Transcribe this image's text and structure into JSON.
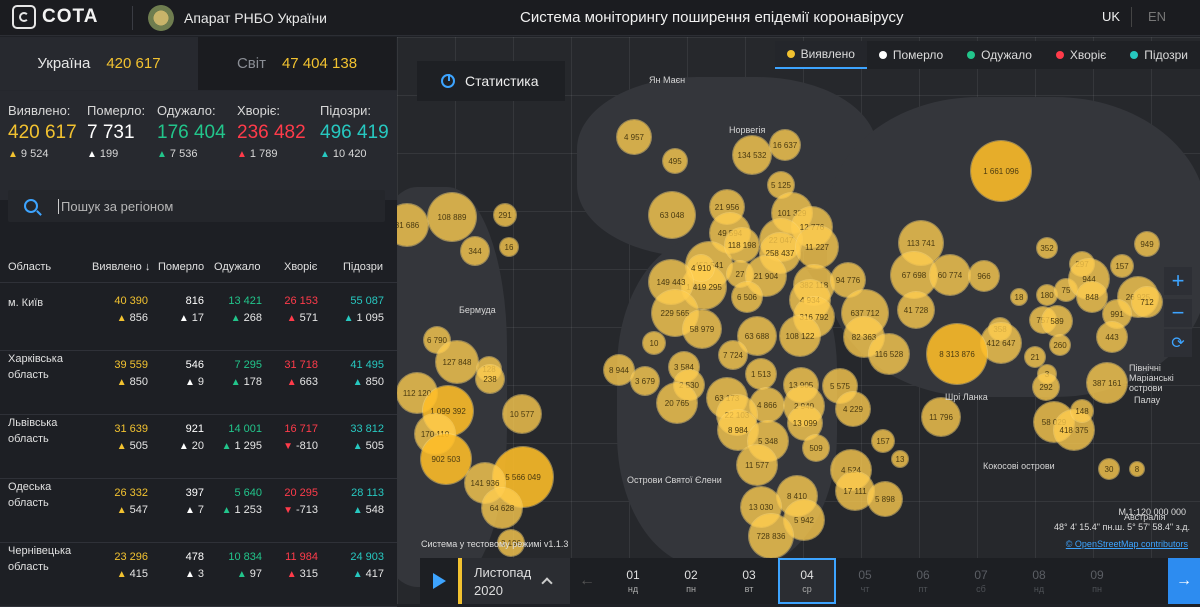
{
  "header": {
    "logo_text": "COTA",
    "org_name": "Апарат РНБО України",
    "title": "Система моніторингу поширення епідемії коронавірусу",
    "lang_uk": "UK",
    "lang_en": "EN"
  },
  "tabs": {
    "ukraine_label": "Україна",
    "ukraine_value": "420 617",
    "world_label": "Світ",
    "world_value": "47 404 138"
  },
  "summary": {
    "detected": {
      "label": "Виявлено:",
      "value": "420 617",
      "delta": "9 524"
    },
    "died": {
      "label": "Померло:",
      "value": "7 731",
      "delta": "199"
    },
    "recovered": {
      "label": "Одужало:",
      "value": "176 404",
      "delta": "7 536"
    },
    "sick": {
      "label": "Хворіє:",
      "value": "236 482",
      "delta": "1 789"
    },
    "suspected": {
      "label": "Підозри:",
      "value": "496 419",
      "delta": "10 420"
    }
  },
  "search": {
    "placeholder": "Пошук за регіоном"
  },
  "table": {
    "headers": {
      "region": "Область",
      "detected": "Виявлено",
      "sort_icon": "↓",
      "died": "Померло",
      "recovered": "Одужало",
      "sick": "Хворіє",
      "suspected": "Підозри"
    },
    "rows": [
      {
        "region": "м. Київ",
        "detected": "40 390",
        "detected_d": "856",
        "died": "816",
        "died_d": "17",
        "recovered": "13 421",
        "recovered_d": "268",
        "sick": "26 153",
        "sick_d": "571",
        "suspected": "55 087",
        "suspected_d": "1 095"
      },
      {
        "region": "Харківська область",
        "detected": "39 559",
        "detected_d": "850",
        "died": "546",
        "died_d": "9",
        "recovered": "7 295",
        "recovered_d": "178",
        "sick": "31 718",
        "sick_d": "663",
        "suspected": "41 495",
        "suspected_d": "850"
      },
      {
        "region": "Львівська область",
        "detected": "31 639",
        "detected_d": "505",
        "died": "921",
        "died_d": "20",
        "recovered": "14 001",
        "recovered_d": "1 295",
        "sick": "16 717",
        "sick_d": "-810",
        "suspected": "33 812",
        "suspected_d": "505"
      },
      {
        "region": "Одеська область",
        "detected": "26 332",
        "detected_d": "547",
        "died": "397",
        "died_d": "7",
        "recovered": "5 640",
        "recovered_d": "1 253",
        "sick": "20 295",
        "sick_d": "-713",
        "suspected": "28 113",
        "suspected_d": "548"
      },
      {
        "region": "Чернівецька область",
        "detected": "23 296",
        "detected_d": "415",
        "died": "478",
        "died_d": "3",
        "recovered": "10 834",
        "recovered_d": "97",
        "sick": "11 984",
        "sick_d": "315",
        "suspected": "24 903",
        "suspected_d": "417"
      }
    ]
  },
  "map": {
    "legend": [
      "Виявлено",
      "Померло",
      "Одужало",
      "Хворіє",
      "Підозри"
    ],
    "legend_colors": [
      "#f2c230",
      "#ffffff",
      "#22c58b",
      "#ff3b4a",
      "#27c8c0"
    ],
    "stats_button": "Статистика",
    "labels": [
      "Ян Маєн",
      "Норвегія",
      "Бермуда",
      "Острови Святої Єлени",
      "Шрі Ланка",
      "Кокосові острови",
      "Палау",
      "Північні Маріанські острови",
      "Австралія"
    ],
    "bubbles": [
      "4 957",
      "495",
      "134 532",
      "16 637",
      "21 956",
      "5 125",
      "1 661 096",
      "63 048",
      "49 594",
      "101 329",
      "291",
      "108 889",
      "81 686",
      "452 541",
      "12 776",
      "344",
      "16",
      "1 419 295",
      "118 198",
      "22 047",
      "258 437",
      "11 227",
      "113 741",
      "352",
      "949",
      "297",
      "157",
      "4 910",
      "27",
      "21 904",
      "149 443",
      "6 506",
      "382 118",
      "94 776",
      "67 698",
      "60 774",
      "966",
      "180",
      "75",
      "944",
      "848",
      "26 925",
      "18",
      "4 934",
      "229 565",
      "316 792",
      "637 712",
      "41 728",
      "757",
      "589",
      "991",
      "712",
      "58 979",
      "63 688",
      "108 122",
      "82 363",
      "358",
      "412 647",
      "260",
      "443",
      "6 790",
      "10",
      "116 528",
      "8 313 876",
      "21",
      "3",
      "127 848",
      "128",
      "7 724",
      "8 944",
      "3 584",
      "1 513",
      "3 679",
      "2 530",
      "13 905",
      "5 575",
      "238",
      "112 120",
      "20 765",
      "63 173",
      "4 866",
      "2 940",
      "4 229",
      "292",
      "387 161",
      "1 099 392",
      "22 103",
      "8 984",
      "13 099",
      "11 796",
      "10 577",
      "170 110",
      "58 029",
      "418 375",
      "148",
      "902 503",
      "5 348",
      "509",
      "157",
      "13",
      "11 577",
      "4 524",
      "5 566 049",
      "141 936",
      "17 111",
      "8 410",
      "5 898",
      "64 628",
      "13 030",
      "5 942",
      "728 836",
      "3 196",
      "30",
      "8"
    ],
    "scale": "М 1:120 000 000",
    "coords": "48° 4' 15.4\" пн.ш. 5° 57' 58.4\" з.д.",
    "osm": "© OpenStreetMap contributors",
    "version": "Система у тестовому режимі v1.1.3"
  },
  "timeline": {
    "month": "Листопад",
    "year": "2020",
    "days": [
      {
        "num": "01",
        "wd": "нд"
      },
      {
        "num": "02",
        "wd": "пн"
      },
      {
        "num": "03",
        "wd": "вт"
      },
      {
        "num": "04",
        "wd": "ср"
      },
      {
        "num": "05",
        "wd": "чт"
      },
      {
        "num": "06",
        "wd": "пт"
      },
      {
        "num": "07",
        "wd": "сб"
      },
      {
        "num": "08",
        "wd": "нд"
      },
      {
        "num": "09",
        "wd": "пн"
      }
    ]
  }
}
